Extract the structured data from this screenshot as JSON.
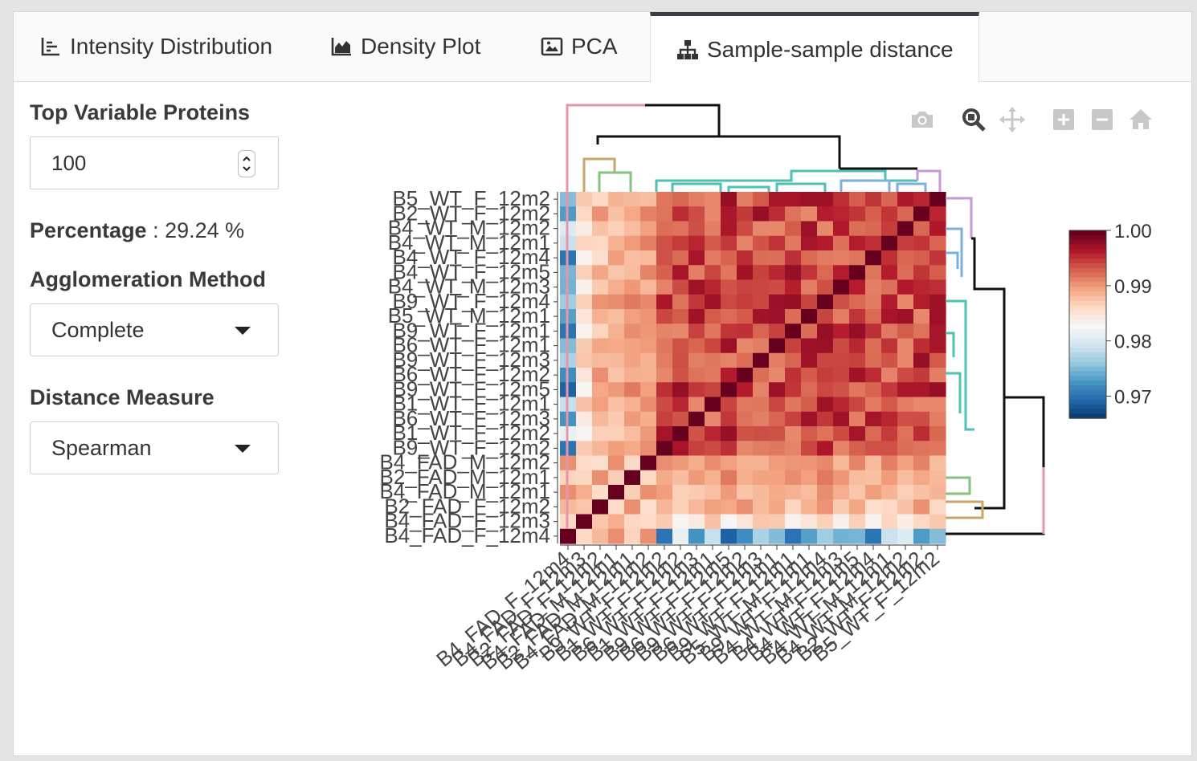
{
  "tabs": [
    {
      "label": "Intensity Distribution",
      "icon": "list-chart-icon"
    },
    {
      "label": "Density Plot",
      "icon": "area-chart-icon"
    },
    {
      "label": "PCA",
      "icon": "image-icon"
    },
    {
      "label": "Sample-sample distance",
      "icon": "sitemap-icon",
      "active": true
    }
  ],
  "sidebar": {
    "top_variable_label": "Top Variable Proteins",
    "top_variable_value": "100",
    "percentage_label": "Percentage",
    "percentage_value": " : 29.24 %",
    "agglomeration_label": "Agglomeration Method",
    "agglomeration_value": "Complete",
    "distance_label": "Distance Measure",
    "distance_value": "Spearman"
  },
  "toolbar": [
    "camera-icon",
    "zoom-icon",
    "pan-icon",
    "zoom-in-icon",
    "zoom-out-icon",
    "home-icon"
  ],
  "colors": {
    "accent": "#3c3c46",
    "high": "#67001f",
    "low": "#053061"
  },
  "chart_data": {
    "type": "heatmap",
    "y_labels": [
      "B5_WT_F_12m2",
      "B2_WT_F_12m2",
      "B4_WT_M_12m2",
      "B4_WT_M_12m1",
      "B4_WT_F_12m4",
      "B4_WT_F_12m5",
      "B4_WT_M_12m3",
      "B9_WT_F_12m4",
      "B5_WT_M_12m1",
      "B9_WT_F_12m1",
      "B6_WT_F_12m1",
      "B9_WT_F_12m3",
      "B6_WT_F_12m2",
      "B9_WT_F_12m5",
      "B1_WT_F_12m1",
      "B6_WT_F_12m3",
      "B1_WT_F_12m2",
      "B9_WT_F_12m2",
      "B4_FAD_M_12m2",
      "B2_FAD_M_12m1",
      "B4_FAD_M_12m1",
      "B2_FAD_F_12m2",
      "B4_FAD_F_12m3",
      "B4_FAD_F_12m4"
    ],
    "x_labels": [
      "B4_FAD_F_12m4",
      "B4_FAD_F_12m3",
      "B2_FAD_F_12m2",
      "B4_FAD_M_12m1",
      "B2_FAD_M_12m1",
      "B4_FAD_M_12m2",
      "B9_WT_F_12m2",
      "B1_WT_F_12m2",
      "B6_WT_F_12m3",
      "B1_WT_F_12m1",
      "B9_WT_F_12m5",
      "B6_WT_F_12m2",
      "B9_WT_F_12m3",
      "B6_WT_F_12m1",
      "B9_WT_F_12m1",
      "B5_WT_M_12m1",
      "B9_WT_F_12m4",
      "B4_WT_M_12m3",
      "B4_WT_F_12m5",
      "B4_WT_F_12m4",
      "B4_WT_M_12m1",
      "B4_WT_M_12m2",
      "B2_WT_F_12m2",
      "B5_WT_F_12m2"
    ],
    "colorbar": {
      "ticks": [
        "1.00",
        "0.99",
        "0.98",
        "0.97"
      ],
      "tick_values": [
        1.0,
        0.99,
        0.98,
        0.97
      ],
      "range": [
        0.966,
        1.0
      ]
    },
    "colorscale": "RdBu_r"
  }
}
